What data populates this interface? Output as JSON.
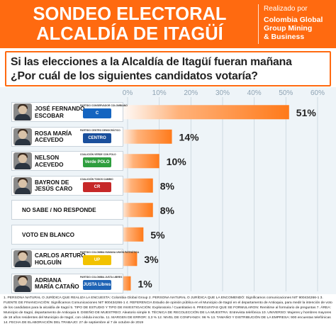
{
  "header": {
    "title_line1": "SONDEO ELECTORAL",
    "title_line2": "ALCALDÍA DE ITAGÜÍ",
    "realizado_por": "Realizado por",
    "company_line1": "Colombia Global",
    "company_line2": "Group Mining",
    "company_line3": "& Business"
  },
  "question": {
    "line1": "Si las elecciones a la Alcaldía de Itagüí fueran mañana",
    "line2": "¿Por cuál de los siguientes candidatos votaría?"
  },
  "colors": {
    "accent": "#ff6a10",
    "bar": "#ff7a1a",
    "background": "#eef4f8"
  },
  "chart_data": {
    "type": "bar",
    "orientation": "horizontal",
    "xlim": [
      0,
      60
    ],
    "ticks": [
      0,
      10,
      20,
      30,
      40,
      50,
      60
    ],
    "tick_labels": [
      "0%",
      "10%",
      "20%",
      "30%",
      "40%",
      "50%",
      "60%"
    ],
    "grid": true,
    "categories": [
      "JOSÉ FERNANDO ESCOBAR",
      "ROSA MARÍA ACEVEDO",
      "NELSON ACEVEDO",
      "BAYRON DE JESÚS CARO",
      "NO SABE / NO RESPONDE",
      "VOTO EN BLANCO",
      "CARLOS ARTURO HOLGUÍN",
      "ADRIANA MARÍA CATAÑO"
    ],
    "values": [
      51,
      14,
      10,
      8,
      8,
      5,
      3,
      1
    ],
    "value_labels": [
      "51%",
      "14%",
      "10%",
      "8%",
      "8%",
      "5%",
      "3%",
      "1%"
    ]
  },
  "candidates": [
    {
      "line1": "JOSÉ FERNANDO",
      "line2": "ESCOBAR",
      "party": "PARTIDO CONSERVADOR COLOMBIANO",
      "logo": "C",
      "logo_color": "#1565c0",
      "photo": true
    },
    {
      "line1": "ROSA MARÍA",
      "line2": "ACEVEDO",
      "party": "PARTIDO CENTRO DEMOCRÁTICO",
      "logo": "CENTRO",
      "logo_color": "#1a4f9c",
      "photo": true
    },
    {
      "line1": "NELSON",
      "line2": "ACEVEDO",
      "party": "COALICIÓN VERDE CON POLO",
      "logo": "Verde POLO",
      "logo_color": "#2e9e3e",
      "photo": true
    },
    {
      "line1": "BAYRON DE",
      "line2": "JESÚS CARO",
      "party": "COALICIÓN TODOS CAMBIO",
      "logo": "CR",
      "logo_color": "#c62828",
      "photo": true
    },
    {
      "line1": "NO SABE / NO RESPONDE",
      "line2": "",
      "party": "",
      "logo": "",
      "logo_color": "",
      "photo": false
    },
    {
      "line1": "VOTO EN BLANCO",
      "line2": "",
      "party": "",
      "logo": "",
      "logo_color": "",
      "photo": false
    },
    {
      "line1": "CARLOS ARTURO",
      "line2": "HOLGUÍN",
      "party": "PARTIDO COLOMBIA HUMANA UNIÓN PATRIÓTICA",
      "logo": "UP",
      "logo_color": "#f2c200",
      "photo": true
    },
    {
      "line1": "ADRIANA",
      "line2": "MARÍA CATAÑO",
      "party": "PARTIDO COLOMBIA JUSTA LIBRES",
      "logo": "JUSTA Libres",
      "logo_color": "#1e63b5",
      "photo": true
    }
  ],
  "footer": {
    "text": "1. PERSONA NATURAL O JURÍDICA QUE REALIZA LA ENCUESTA: Colombia Global Group 2. PERSONA NATURAL O JURÍDICA QUE LA ENCOMENDÓ: Significamos comunicaciones NIT 900434266-1 3. FUENTE DE FINANCIACIÓN: Significamos Comunicaciones NIT 900434266-1 4. REFERENCIA Estudio de opinión pública en el Municipio de Itagüí en el departamento de Antioquia, para medir la intención de voto de los candidatos para la alcaldía de Itagüí 5. TIPO DE ESTUDIO Y TIPO DE INVESTIGACIÓN: Exploratorio / Cuantitativo 6. PREGUNTAS QUE SE FORMULARON: Remitirse al formulario de preguntas 7. ÁREA: Municipio de Itagüí, departamento de Antioquia 8. DISEÑO DE MUESTREO: Aleatorio simple 9. TÉCNICA DE RECOLECCIÓN DE LA MUESTRA: Entrevista telefónica 10. UNIVERSO: Mujeres y hombres mayores de 18 años residentes del Municipio de Itagüí, con cédula inscrita. 11. MARGEN DE ERROR: 3,3 % 12. NIVEL DE CONFIANZA: 96 % 13. TAMAÑO Y DISTRIBUCIÓN DE LA EMPRESA: 900 encuestas telefónicas 14. FECHA DE ELABORACIÓN DEL TRABAJO: 27 de septiembre al 7 de octubre de 2019"
  }
}
